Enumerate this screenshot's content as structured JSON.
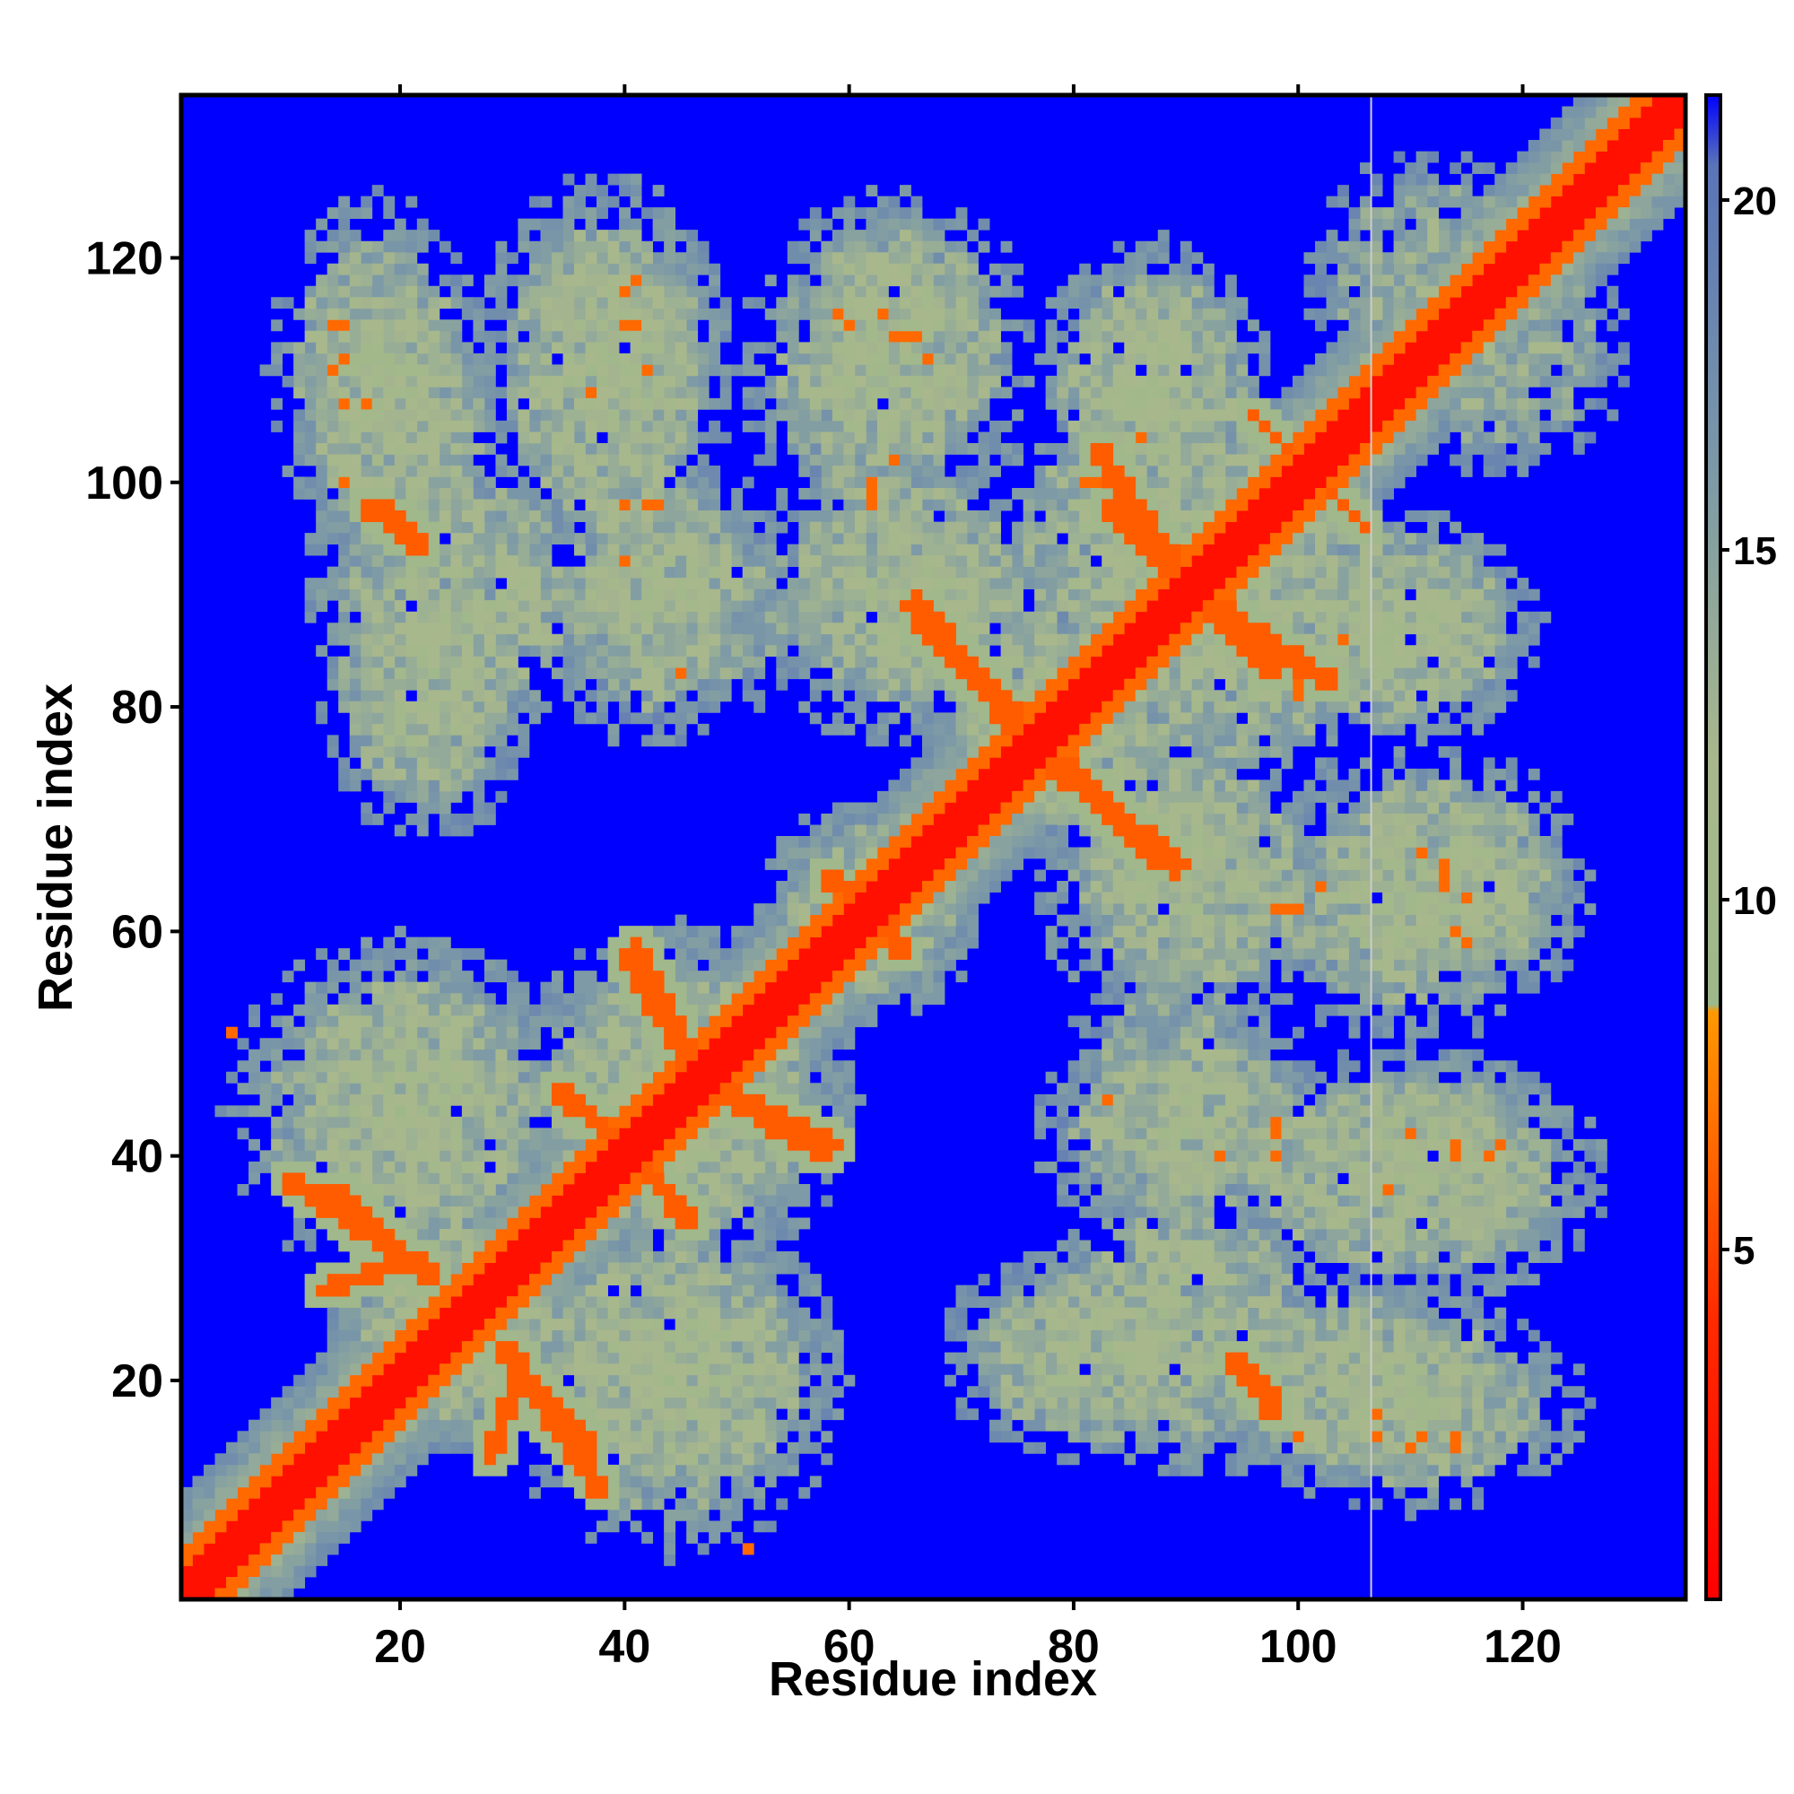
{
  "chart_data": {
    "type": "heatmap",
    "title": "",
    "xlabel": "Residue index",
    "ylabel": "Residue index",
    "xlim": [
      0.5,
      134.5
    ],
    "ylim": [
      0.5,
      134.5
    ],
    "n": 134,
    "x_ticks": [
      20,
      40,
      60,
      80,
      100,
      120
    ],
    "y_ticks": [
      20,
      40,
      60,
      80,
      100,
      120
    ],
    "colorbar": {
      "ticks": [
        5,
        10,
        15,
        20
      ],
      "range": [
        0,
        21.5
      ],
      "stops": [
        {
          "value": 0,
          "color": "#ff0000"
        },
        {
          "value": 4,
          "color": "#ff2a00"
        },
        {
          "value": 8.4,
          "color": "#ff9900"
        },
        {
          "value": 8.5,
          "color": "#9db88a"
        },
        {
          "value": 12,
          "color": "#a8b88c"
        },
        {
          "value": 16,
          "color": "#7d9aa6"
        },
        {
          "value": 20.5,
          "color": "#5a74b8"
        },
        {
          "value": 21.5,
          "color": "#0000ff"
        }
      ]
    },
    "background_color": "#0000ff",
    "grid": false,
    "diagonal_band": {
      "width": 2.5,
      "value": 1.5
    },
    "contact_segments": [
      {
        "from": [
          13,
          28
        ],
        "to": [
          22,
          31
        ],
        "value": 6,
        "width": 0.8
      },
      {
        "from": [
          28,
          13
        ],
        "to": [
          31,
          22
        ],
        "value": 6,
        "width": 0.8
      },
      {
        "from": [
          10,
          38
        ],
        "to": [
          23,
          29
        ],
        "value": 6,
        "width": 0.9
      },
      {
        "from": [
          38,
          10
        ],
        "to": [
          29,
          23
        ],
        "value": 6,
        "width": 0.9
      },
      {
        "from": [
          29,
          23
        ],
        "to": [
          37,
          14
        ],
        "value": 6,
        "width": 0.9
      },
      {
        "from": [
          23,
          29
        ],
        "to": [
          14,
          37
        ],
        "value": 6,
        "width": 0.9
      },
      {
        "from": [
          34,
          46
        ],
        "to": [
          41,
          40
        ],
        "value": 6,
        "width": 0.9
      },
      {
        "from": [
          46,
          34
        ],
        "to": [
          40,
          41
        ],
        "value": 6,
        "width": 0.9
      },
      {
        "from": [
          40,
          41
        ],
        "to": [
          45,
          35
        ],
        "value": 6,
        "width": 0.9
      },
      {
        "from": [
          41,
          40
        ],
        "to": [
          35,
          45
        ],
        "value": 6,
        "width": 0.9
      },
      {
        "from": [
          41,
          59
        ],
        "to": [
          46,
          48
        ],
        "value": 6,
        "width": 0.9
      },
      {
        "from": [
          59,
          41
        ],
        "to": [
          48,
          46
        ],
        "value": 6,
        "width": 0.9
      },
      {
        "from": [
          48,
          46
        ],
        "to": [
          58,
          40
        ],
        "value": 6,
        "width": 0.9
      },
      {
        "from": [
          46,
          48
        ],
        "to": [
          40,
          58
        ],
        "value": 6,
        "width": 0.9
      },
      {
        "from": [
          60,
          64
        ],
        "to": [
          65,
          58
        ],
        "value": 6,
        "width": 0.8
      },
      {
        "from": [
          64,
          60
        ],
        "to": [
          58,
          65
        ],
        "value": 6,
        "width": 0.8
      },
      {
        "from": [
          66,
          89
        ],
        "to": [
          78,
          75
        ],
        "value": 6,
        "width": 1.0
      },
      {
        "from": [
          89,
          66
        ],
        "to": [
          75,
          78
        ],
        "value": 6,
        "width": 1.0
      },
      {
        "from": [
          78,
          75
        ],
        "to": [
          88,
          66
        ],
        "value": 6,
        "width": 0.9
      },
      {
        "from": [
          75,
          78
        ],
        "to": [
          66,
          88
        ],
        "value": 6,
        "width": 0.9
      },
      {
        "from": [
          83,
          98
        ],
        "to": [
          90,
          91
        ],
        "value": 6,
        "width": 0.9
      },
      {
        "from": [
          98,
          83
        ],
        "to": [
          91,
          90
        ],
        "value": 6,
        "width": 0.9
      },
      {
        "from": [
          91,
          90
        ],
        "to": [
          103,
          82
        ],
        "value": 6,
        "width": 0.9
      },
      {
        "from": [
          90,
          91
        ],
        "to": [
          82,
          103
        ],
        "value": 6,
        "width": 0.9
      },
      {
        "from": [
          17,
          98
        ],
        "to": [
          22,
          94
        ],
        "value": 6,
        "width": 0.8
      },
      {
        "from": [
          94,
          22
        ],
        "to": [
          98,
          17
        ],
        "value": 6,
        "width": 0.8
      },
      {
        "from": [
          95,
          22
        ],
        "to": [
          98,
          18
        ],
        "value": 6,
        "width": 0.7
      },
      {
        "from": [
          22,
          95
        ],
        "to": [
          18,
          98
        ],
        "value": 6,
        "width": 0.7
      },
      {
        "from": [
          96,
          106
        ],
        "to": [
          103,
          99
        ],
        "value": 6,
        "width": 0.6
      },
      {
        "from": [
          106,
          96
        ],
        "to": [
          99,
          103
        ],
        "value": 6,
        "width": 0.6
      }
    ],
    "hotspots": [
      [
        14,
        114
      ],
      [
        14,
        110
      ],
      [
        15,
        107
      ],
      [
        40,
        114
      ],
      [
        41,
        118
      ],
      [
        37,
        108
      ],
      [
        59,
        115
      ],
      [
        63,
        115
      ],
      [
        66,
        113
      ],
      [
        5,
        51
      ],
      [
        51,
        5
      ],
      [
        43,
        98
      ],
      [
        45,
        83
      ],
      [
        82,
        103
      ],
      [
        98,
        42
      ],
      [
        99,
        62
      ],
      [
        102,
        64
      ],
      [
        111,
        67
      ],
      [
        114,
        60
      ],
      [
        113,
        65
      ],
      [
        64,
        113
      ],
      [
        60,
        114
      ],
      [
        114,
        15
      ],
      [
        111,
        15
      ],
      [
        15,
        111
      ],
      [
        98,
        40
      ],
      [
        40,
        98
      ],
      [
        114,
        41
      ],
      [
        117,
        40
      ],
      [
        110,
        42
      ],
      [
        100,
        15
      ],
      [
        107,
        17
      ],
      [
        17,
        107
      ],
      [
        62,
        98
      ],
      [
        62,
        100
      ],
      [
        40,
        93
      ],
      [
        86,
        104
      ],
      [
        81,
        100
      ],
      [
        100,
        82
      ]
    ],
    "contact_regions": [
      {
        "center": [
          18,
          110
        ],
        "radius": [
          10,
          16
        ],
        "value": 12
      },
      {
        "center": [
          38,
          110
        ],
        "radius": [
          12,
          18
        ],
        "value": 12
      },
      {
        "center": [
          62,
          110
        ],
        "radius": [
          12,
          16
        ],
        "value": 12
      },
      {
        "center": [
          88,
          108
        ],
        "radius": [
          10,
          14
        ],
        "value": 12
      },
      {
        "center": [
          25,
          90
        ],
        "radius": [
          14,
          14
        ],
        "value": 12
      },
      {
        "center": [
          45,
          90
        ],
        "radius": [
          14,
          12
        ],
        "value": 13
      },
      {
        "center": [
          65,
          90
        ],
        "radius": [
          12,
          10
        ],
        "value": 12
      },
      {
        "center": [
          24,
          82
        ],
        "radius": [
          8,
          14
        ],
        "value": 13
      },
      {
        "center": [
          20,
          44
        ],
        "radius": [
          16,
          16
        ],
        "value": 12
      },
      {
        "center": [
          45,
          45
        ],
        "radius": [
          16,
          16
        ],
        "value": 12
      },
      {
        "center": [
          25,
          25
        ],
        "radius": [
          12,
          12
        ],
        "value": 12
      },
      {
        "center": [
          45,
          22
        ],
        "radius": [
          14,
          14
        ],
        "value": 12
      },
      {
        "center": [
          62,
          62
        ],
        "radius": [
          10,
          10
        ],
        "value": 12
      },
      {
        "center": [
          78,
          80
        ],
        "radius": [
          12,
          14
        ],
        "value": 12
      },
      {
        "center": [
          95,
          85
        ],
        "radius": [
          12,
          14
        ],
        "value": 12
      },
      {
        "center": [
          92,
          95
        ],
        "radius": [
          14,
          14
        ],
        "value": 12
      },
      {
        "center": [
          90,
          65
        ],
        "radius": [
          14,
          14
        ],
        "value": 12
      },
      {
        "center": [
          112,
          65
        ],
        "radius": [
          14,
          12
        ],
        "value": 12
      },
      {
        "center": [
          108,
          86
        ],
        "radius": [
          14,
          10
        ],
        "value": 12
      },
      {
        "center": [
          110,
          40
        ],
        "radius": [
          16,
          10
        ],
        "value": 12
      },
      {
        "center": [
          90,
          42
        ],
        "radius": [
          14,
          10
        ],
        "value": 12
      },
      {
        "center": [
          82,
          22
        ],
        "radius": [
          14,
          10
        ],
        "value": 12
      },
      {
        "center": [
          105,
          20
        ],
        "radius": [
          14,
          10
        ],
        "value": 12
      },
      {
        "center": [
          118,
          112
        ],
        "radius": [
          12,
          12
        ],
        "value": 13
      }
    ],
    "separator_x": 106.5,
    "separator_color": "#cccccc"
  }
}
